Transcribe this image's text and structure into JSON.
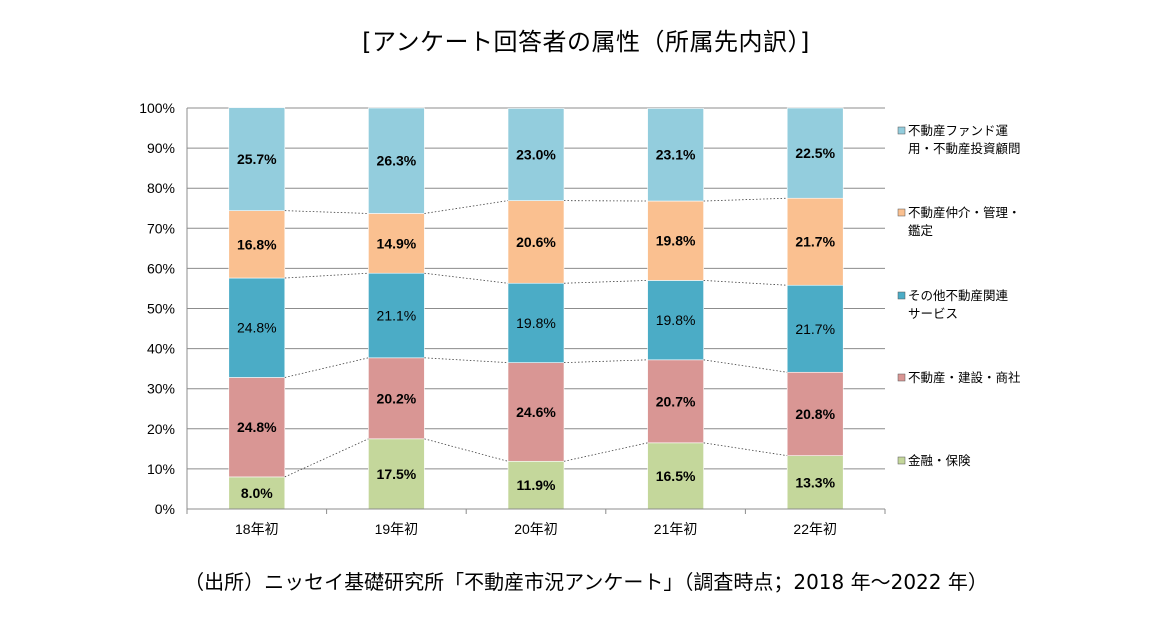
{
  "title": "[アンケート回答者の属性（所属先内訳）]",
  "source": "（出所）ニッセイ基礎研究所「不動産市況アンケート」（調査時点；2018 年～2022 年）",
  "chart_data": {
    "type": "bar",
    "stacked": true,
    "percent": true,
    "title": "[アンケート回答者の属性（所属先内訳）]",
    "categories": [
      "18年初",
      "19年初",
      "20年初",
      "21年初",
      "22年初"
    ],
    "ylim": [
      0,
      100
    ],
    "yticks": [
      "0%",
      "10%",
      "20%",
      "30%",
      "40%",
      "50%",
      "60%",
      "70%",
      "80%",
      "90%",
      "100%"
    ],
    "grid": true,
    "legend_position": "right",
    "series_lines": true,
    "series": [
      {
        "name": "金融・保険",
        "values": [
          8.0,
          17.5,
          11.9,
          16.5,
          13.3
        ],
        "color": "#c4d79b",
        "bold": true,
        "labels": [
          "8.0%",
          "17.5%",
          "11.9%",
          "16.5%",
          "13.3%"
        ]
      },
      {
        "name": "不動産・建設・商社",
        "values": [
          24.8,
          20.2,
          24.6,
          20.7,
          20.8
        ],
        "color": "#d99694",
        "bold": true,
        "labels": [
          "24.8%",
          "20.2%",
          "24.6%",
          "20.7%",
          "20.8%"
        ]
      },
      {
        "name": "その他不動産関連サービス",
        "values": [
          24.8,
          21.1,
          19.8,
          19.8,
          21.7
        ],
        "color": "#4bacc6",
        "bold": false,
        "labels": [
          "24.8%",
          "21.1%",
          "19.8%",
          "19.8%",
          "21.7%"
        ]
      },
      {
        "name": "不動産仲介・管理・鑑定",
        "values": [
          16.8,
          14.9,
          20.6,
          19.8,
          21.7
        ],
        "color": "#fac090",
        "bold": true,
        "labels": [
          "16.8%",
          "14.9%",
          "20.6%",
          "19.8%",
          "21.7%"
        ]
      },
      {
        "name": "不動産ファンド運用・不動産投資顧問",
        "values": [
          25.7,
          26.3,
          23.0,
          23.1,
          22.5
        ],
        "color": "#93cddd",
        "bold": true,
        "labels": [
          "25.7%",
          "26.3%",
          "23.0%",
          "23.1%",
          "22.5%"
        ]
      }
    ],
    "legend": [
      {
        "lines": [
          "不動産ファンド運",
          "用・不動産投資顧問"
        ],
        "color": "#93cddd"
      },
      {
        "lines": [
          "不動産仲介・管理・",
          "鑑定"
        ],
        "color": "#fac090"
      },
      {
        "lines": [
          "その他不動産関連",
          "サービス"
        ],
        "color": "#4bacc6"
      },
      {
        "lines": [
          "不動産・建設・商社"
        ],
        "color": "#d99694"
      },
      {
        "lines": [
          "金融・保険"
        ],
        "color": "#c4d79b"
      }
    ]
  }
}
